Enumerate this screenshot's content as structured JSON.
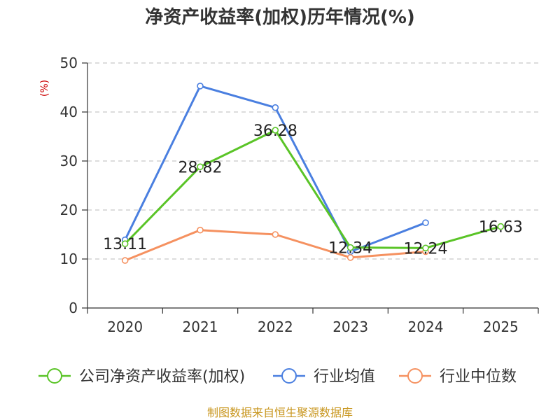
{
  "chart_data": {
    "type": "line",
    "title": "净资产收益率(加权)历年情况(%)",
    "ylabel": "(%)",
    "xlabel": "",
    "categories": [
      "2020",
      "2021",
      "2022",
      "2023",
      "2024",
      "2025"
    ],
    "ylim": [
      0,
      50
    ],
    "yticks": [
      "0",
      "10",
      "20",
      "30",
      "40",
      "50"
    ],
    "grid": true,
    "legend_position": "bottom",
    "series": [
      {
        "name": "公司净资产收益率(加权)",
        "color": "#5ac427",
        "values": [
          13.11,
          28.82,
          36.28,
          12.34,
          12.24,
          16.63
        ],
        "labels": [
          "13.11",
          "28.82",
          "36.28",
          "12.34",
          "12.24",
          "16.63"
        ]
      },
      {
        "name": "行业均值",
        "color": "#4a7fe0",
        "values": [
          13.9,
          45.3,
          40.9,
          11.5,
          17.4,
          null
        ]
      },
      {
        "name": "行业中位数",
        "color": "#f59160",
        "values": [
          9.7,
          15.9,
          15.0,
          10.3,
          11.5,
          null
        ]
      }
    ],
    "source": "制图数据来自恒生聚源数据库"
  }
}
